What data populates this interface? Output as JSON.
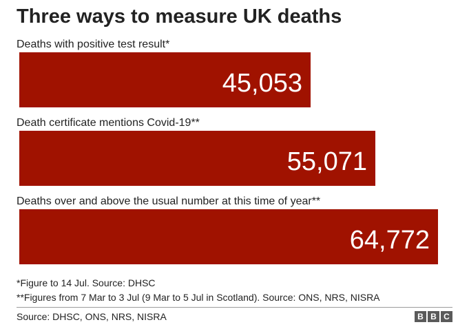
{
  "title": "Three ways to measure UK deaths",
  "colors": {
    "bar": "#a01200",
    "bar_value_text": "#ffffff"
  },
  "chart_data": {
    "type": "bar",
    "orientation": "horizontal",
    "categories": [
      "Deaths with positive test result*",
      "Death certificate mentions Covid-19**",
      "Deaths over and above the usual number at this time of year**"
    ],
    "values": [
      45053,
      55071,
      64772
    ],
    "value_labels": [
      "45,053",
      "55,071",
      "64,772"
    ],
    "title": "Three ways to measure UK deaths",
    "xlabel": "",
    "ylabel": "",
    "xlim": [
      0,
      64772
    ],
    "grid": false,
    "legend": "none"
  },
  "footnotes": [
    "*Figure to 14 Jul. Source: DHSC",
    "**Figures from 7 Mar to 3 Jul (9 Mar to 5 Jul in Scotland). Source: ONS, NRS, NISRA"
  ],
  "source": "Source: DHSC, ONS, NRS, NISRA",
  "logo": {
    "letters": [
      "B",
      "B",
      "C"
    ]
  }
}
